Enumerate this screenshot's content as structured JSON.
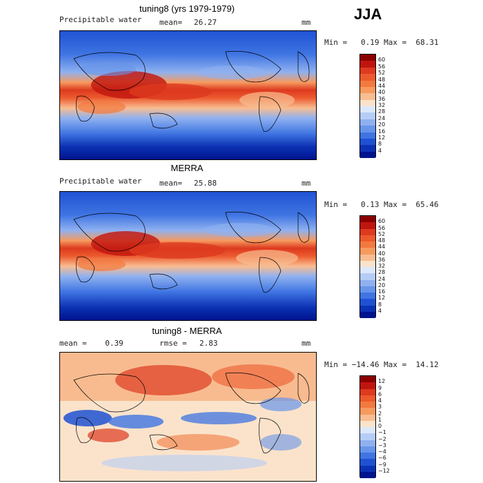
{
  "season": "JJA",
  "panels": [
    {
      "title": "tuning8 (yrs 1979-1979)",
      "left_label": "Precipitable water",
      "mean_label": "mean=",
      "mean_value": "26.27",
      "units": "mm",
      "stats": "Min =   0.19 Max =  68.31",
      "kind": "field",
      "colorbar_ticks": [
        "60",
        "56",
        "52",
        "48",
        "44",
        "40",
        "36",
        "32",
        "28",
        "24",
        "20",
        "16",
        "12",
        "8",
        "4"
      ]
    },
    {
      "title": "MERRA",
      "left_label": "Precipitable water",
      "mean_label": "mean=",
      "mean_value": "25.88",
      "units": "mm",
      "stats": "Min =   0.13 Max =  65.46",
      "kind": "field",
      "colorbar_ticks": [
        "60",
        "56",
        "52",
        "48",
        "44",
        "40",
        "36",
        "32",
        "28",
        "24",
        "20",
        "16",
        "12",
        "8",
        "4"
      ]
    },
    {
      "title": "tuning8 - MERRA",
      "left_label": "mean =    0.39",
      "mean_label": "rmse =",
      "mean_value": "2.83",
      "units": "mm",
      "stats": "Min = −14.46 Max =  14.12",
      "kind": "diff",
      "colorbar_ticks": [
        "12",
        "9",
        "6",
        "4",
        "3",
        "2",
        "1",
        "0",
        "−1",
        "−2",
        "−3",
        "−4",
        "−6",
        "−9",
        "−12"
      ]
    }
  ],
  "colors": {
    "field_scale": [
      "#8b0000",
      "#c0150f",
      "#dd3a1f",
      "#ec5a2e",
      "#f2793f",
      "#f69a5f",
      "#f8bd91",
      "#fbe3cb",
      "#dbe8fb",
      "#b5cdf6",
      "#8fb1f0",
      "#6895ea",
      "#3f74e2",
      "#1f52d3",
      "#0c32b4",
      "#00148f"
    ],
    "diff_scale": [
      "#8b0000",
      "#c0150f",
      "#dd3a1f",
      "#ec5a2e",
      "#f2793f",
      "#f69a5f",
      "#f8bd91",
      "#fbe3cb",
      "#dbe8fb",
      "#b5cdf6",
      "#8fb1f0",
      "#6895ea",
      "#3f74e2",
      "#1f52d3",
      "#0c32b4",
      "#00148f"
    ]
  }
}
